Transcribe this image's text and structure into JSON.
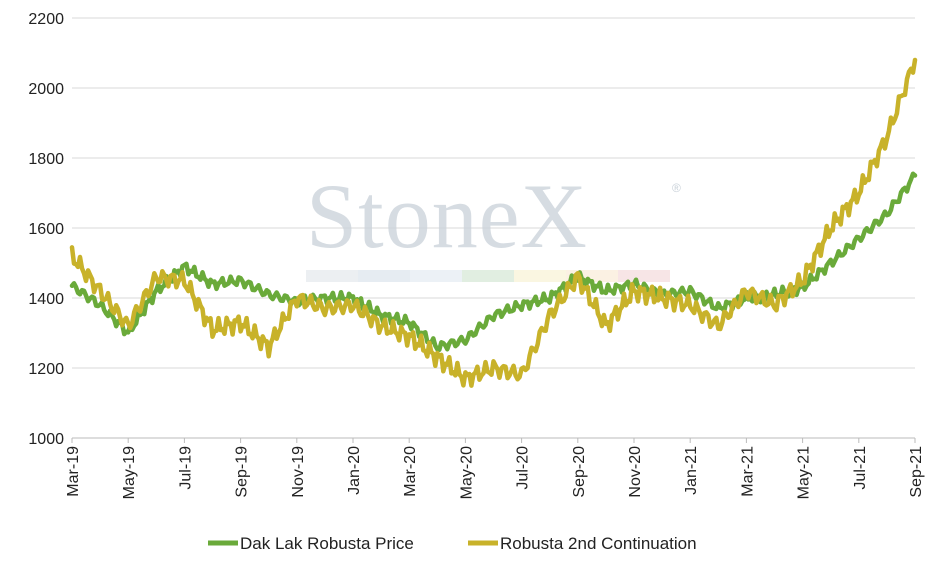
{
  "watermark": {
    "text": "StoneX",
    "mark": "®"
  },
  "chart_data": {
    "type": "line",
    "title": "",
    "xlabel": "",
    "ylabel": "",
    "ylim": [
      1000,
      2200
    ],
    "yticks": [
      1000,
      1200,
      1400,
      1600,
      1800,
      2000,
      2200
    ],
    "xticks": [
      "Mar-19",
      "May-19",
      "Jul-19",
      "Sep-19",
      "Nov-19",
      "Jan-20",
      "Mar-20",
      "May-20",
      "Jul-20",
      "Sep-20",
      "Nov-20",
      "Jan-21",
      "Mar-21",
      "May-21",
      "Jul-21",
      "Sep-21"
    ],
    "grid": "horizontal",
    "legend": "bottom",
    "x_months": [
      "Mar-19",
      "Apr-19",
      "May-19",
      "Jun-19",
      "Jul-19",
      "Aug-19",
      "Sep-19",
      "Oct-19",
      "Nov-19",
      "Dec-19",
      "Jan-20",
      "Feb-20",
      "Mar-20",
      "Apr-20",
      "May-20",
      "Jun-20",
      "Jul-20",
      "Aug-20",
      "Sep-20",
      "Oct-20",
      "Nov-20",
      "Dec-20",
      "Jan-21",
      "Feb-21",
      "Mar-21",
      "Apr-21",
      "May-21",
      "Jun-21",
      "Jul-21",
      "Aug-21",
      "Sep-21"
    ],
    "series": [
      {
        "name": "Dak Lak Robusta Price",
        "color": "#6aaa3a",
        "values": [
          1435,
          1380,
          1300,
          1420,
          1490,
          1440,
          1450,
          1410,
          1390,
          1400,
          1400,
          1350,
          1330,
          1260,
          1280,
          1350,
          1380,
          1400,
          1460,
          1420,
          1440,
          1410,
          1420,
          1370,
          1400,
          1410,
          1430,
          1500,
          1570,
          1640,
          1750
        ]
      },
      {
        "name": "Robusta 2nd Continuation",
        "color": "#c8b22a",
        "values": [
          1520,
          1420,
          1320,
          1460,
          1450,
          1310,
          1330,
          1260,
          1400,
          1370,
          1380,
          1320,
          1290,
          1230,
          1170,
          1200,
          1180,
          1350,
          1460,
          1320,
          1420,
          1400,
          1380,
          1320,
          1420,
          1380,
          1450,
          1600,
          1700,
          1860,
          2080
        ]
      }
    ]
  }
}
